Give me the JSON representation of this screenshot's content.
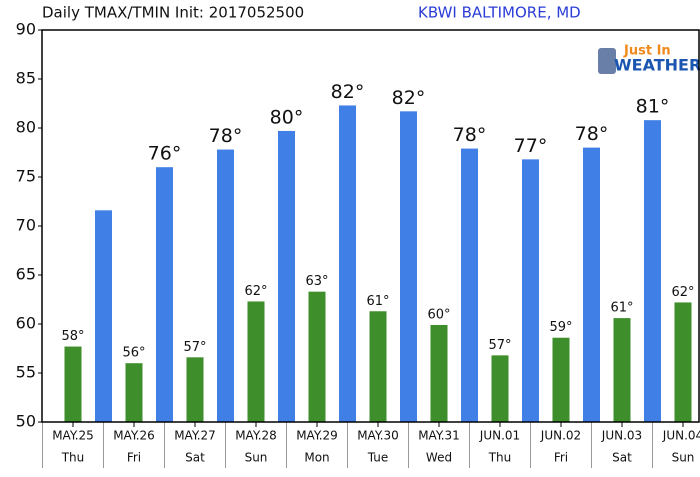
{
  "chart_data": {
    "type": "bar",
    "title": "Daily TMAX/TMIN Init: 2017052500",
    "subtitle": "KBWI BALTIMORE, MD",
    "logo": {
      "top": "Just In",
      "bottom": "WEATHER"
    },
    "categories": [
      "MAY.25",
      "MAY.26",
      "MAY.27",
      "MAY.28",
      "MAY.29",
      "MAY.30",
      "MAY.31",
      "JUN.01",
      "JUN.02",
      "JUN.03",
      "JUN.04"
    ],
    "days": [
      "Thu",
      "Fri",
      "Sat",
      "Sun",
      "Mon",
      "Tue",
      "Wed",
      "Thu",
      "Fri",
      "Sat",
      "Sun"
    ],
    "series": [
      {
        "color": "#3e8e2b",
        "values": [
          57.7,
          56.0,
          56.6,
          62.3,
          63.3,
          61.3,
          59.9,
          56.8,
          58.6,
          60.6,
          62.2
        ],
        "value_labels": [
          "58°",
          "56°",
          "57°",
          "62°",
          "63°",
          "61°",
          "60°",
          "57°",
          "59°",
          "61°",
          "62°"
        ]
      },
      {
        "color": "#3f7fe6",
        "values": [
          71.6,
          76.0,
          77.8,
          79.7,
          82.3,
          81.7,
          77.9,
          76.8,
          78.0,
          80.8,
          null
        ],
        "value_labels": [
          null,
          "76°",
          "78°",
          "80°",
          "82°",
          "82°",
          "78°",
          "77°",
          "78°",
          "81°",
          null
        ]
      }
    ],
    "ylim": [
      50,
      90
    ],
    "yticks": [
      50,
      55,
      60,
      65,
      70,
      75,
      80,
      85,
      90
    ],
    "grid": false
  }
}
